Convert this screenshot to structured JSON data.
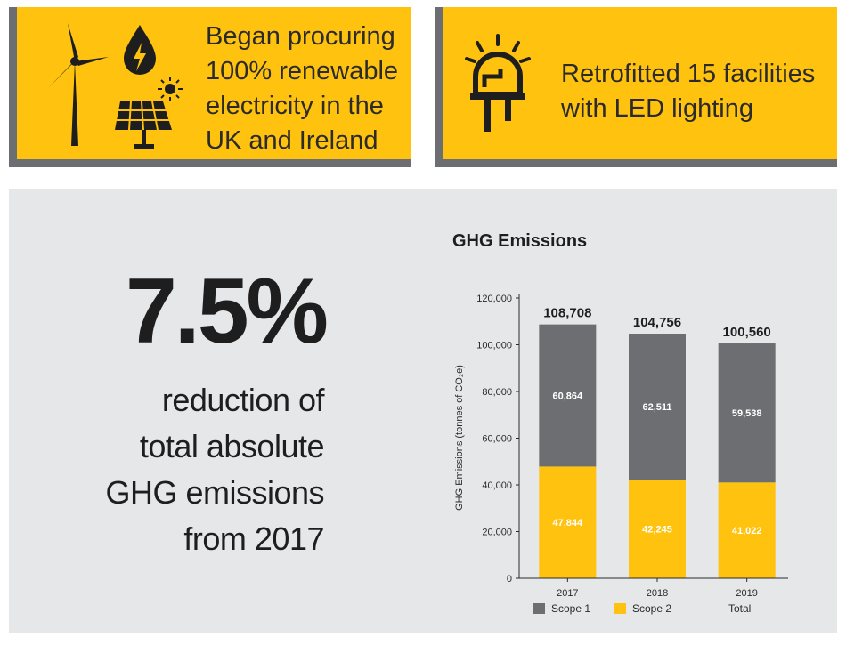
{
  "cards": {
    "renewable": {
      "lines": [
        "Began procuring",
        "100% renewable",
        "electricity in the",
        "UK and Ireland"
      ],
      "icons": [
        "wind-turbine-icon",
        "power-drop-icon",
        "sun-icon",
        "solar-panel-icon"
      ]
    },
    "led": {
      "lines": [
        "Retrofitted 15 facilities",
        "with LED lighting"
      ],
      "icons": [
        "led-bulb-icon"
      ]
    }
  },
  "highlight": {
    "value": "7.5%",
    "lines": [
      "reduction of",
      "total absolute",
      "GHG emissions",
      "from 2017"
    ]
  },
  "colors": {
    "yellow": "#ffc20e",
    "gray": "#6d6e71",
    "panel": "#e6e7e8"
  },
  "chart_data": {
    "type": "bar",
    "stacked": true,
    "title": "GHG Emissions",
    "ylabel": "GHG Emissions (tonnes of CO₂e)",
    "categories": [
      "2017",
      "2018",
      "2019"
    ],
    "series": [
      {
        "name": "Scope 2",
        "values": [
          47844,
          42245,
          41022
        ],
        "labels": [
          "47,844",
          "42,245",
          "41,022"
        ],
        "color": "#ffc20e"
      },
      {
        "name": "Scope 1",
        "values": [
          60864,
          62511,
          59538
        ],
        "labels": [
          "60,864",
          "62,511",
          "59,538"
        ],
        "color": "#6d6e71"
      }
    ],
    "totals": {
      "name": "Total",
      "values": [
        108708,
        104756,
        100560
      ],
      "labels": [
        "108,708",
        "104,756",
        "100,560"
      ]
    },
    "yticks": [
      "0",
      "20,000",
      "40,000",
      "60,000",
      "80,000",
      "100,000",
      "120,000"
    ],
    "ylim": [
      0,
      120000
    ],
    "legend": [
      "Scope 1",
      "Scope 2",
      "Total"
    ],
    "legend_position": "bottom",
    "grid": false
  }
}
